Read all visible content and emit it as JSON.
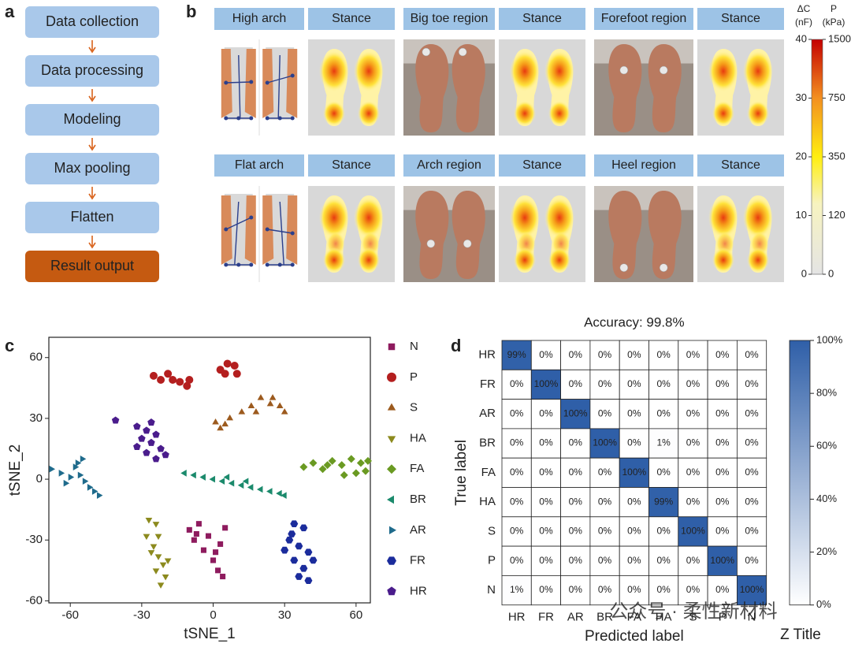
{
  "panel_a": {
    "label": "a",
    "steps": [
      "Data collection",
      "Data processing",
      "Modeling",
      "Max pooling",
      "Flatten",
      "Result output"
    ]
  },
  "panel_b": {
    "label": "b",
    "headers": [
      [
        "High arch",
        "Stance"
      ],
      [
        "Big toe region",
        "Stance"
      ],
      [
        "Forefoot region",
        "Stance"
      ],
      [
        "Flat arch",
        "Stance"
      ],
      [
        "Arch region",
        "Stance"
      ],
      [
        "Heel region",
        "Stance"
      ]
    ],
    "colorbar": {
      "left_title": [
        "ΔC",
        "(nF)"
      ],
      "right_title": [
        "P",
        "(kPa)"
      ],
      "lim": [
        0,
        40
      ],
      "ticks": [
        0,
        10,
        20,
        30,
        40
      ],
      "right_ticks": [
        0,
        120,
        350,
        750,
        1500
      ]
    }
  },
  "chart_data": [
    {
      "type": "scatter",
      "label": "c",
      "xlabel": "tSNE_1",
      "ylabel": "tSNE_2",
      "xlim": [
        -69,
        66
      ],
      "ylim": [
        -61,
        70
      ],
      "xticks": [
        -60,
        -30,
        0,
        30,
        60
      ],
      "yticks": [
        -60,
        -30,
        0,
        30,
        60
      ],
      "series": [
        {
          "name": "N",
          "color": "#8e1b5e",
          "marker": "square",
          "x": [
            -10,
            -8,
            -6,
            -4,
            -2,
            0,
            2,
            3,
            5,
            -7,
            1,
            4
          ],
          "y": [
            -25,
            -30,
            -22,
            -35,
            -28,
            -40,
            -45,
            -32,
            -24,
            -27,
            -36,
            -48
          ]
        },
        {
          "name": "P",
          "color": "#b41f1f",
          "marker": "circle",
          "x": [
            -25,
            -22,
            -19,
            -17,
            -14,
            -11,
            -10,
            3,
            6,
            9,
            10,
            5
          ],
          "y": [
            51,
            49,
            52,
            49,
            48,
            46,
            49,
            54,
            57,
            56,
            52,
            52
          ]
        },
        {
          "name": "S",
          "color": "#9c5a1e",
          "marker": "up",
          "x": [
            1,
            3,
            5,
            7,
            12,
            16,
            20,
            24,
            28,
            30,
            18,
            25
          ],
          "y": [
            28,
            25,
            27,
            30,
            33,
            36,
            40,
            37,
            36,
            33,
            33,
            40
          ]
        },
        {
          "name": "HA",
          "color": "#8c8a1e",
          "marker": "down",
          "x": [
            -27,
            -24,
            -28,
            -25,
            -23,
            -21,
            -24,
            -20,
            -22,
            -26,
            -19,
            -23
          ],
          "y": [
            -20,
            -22,
            -28,
            -33,
            -38,
            -42,
            -45,
            -48,
            -52,
            -36,
            -40,
            -28
          ]
        },
        {
          "name": "FA",
          "color": "#6a9a22",
          "marker": "diamond",
          "x": [
            38,
            42,
            46,
            50,
            54,
            58,
            62,
            65,
            60,
            55,
            64,
            48
          ],
          "y": [
            6,
            8,
            5,
            9,
            7,
            10,
            8,
            9,
            3,
            2,
            4,
            7
          ]
        },
        {
          "name": "BR",
          "color": "#1b8a6c",
          "marker": "left",
          "x": [
            -12,
            -8,
            -4,
            0,
            4,
            8,
            12,
            16,
            20,
            24,
            28,
            30,
            6,
            14
          ],
          "y": [
            3,
            2,
            1,
            0,
            -1,
            -2,
            -3,
            -4,
            -5,
            -6,
            -7,
            -8,
            1,
            -1
          ]
        },
        {
          "name": "AR",
          "color": "#1f6b8c",
          "marker": "right",
          "x": [
            -68,
            -64,
            -60,
            -58,
            -56,
            -54,
            -52,
            -50,
            -48,
            -62,
            -57,
            -55
          ],
          "y": [
            5,
            3,
            1,
            6,
            2,
            -1,
            -4,
            -6,
            -8,
            -2,
            8,
            10
          ]
        },
        {
          "name": "FR",
          "color": "#1b2c9c",
          "marker": "hexagon",
          "x": [
            34,
            38,
            32,
            36,
            40,
            34,
            38,
            36,
            40,
            30,
            42,
            33
          ],
          "y": [
            -22,
            -24,
            -30,
            -33,
            -36,
            -40,
            -44,
            -48,
            -50,
            -35,
            -40,
            -27
          ]
        },
        {
          "name": "HR",
          "color": "#4a1c8c",
          "marker": "pentagon",
          "x": [
            -41,
            -32,
            -28,
            -30,
            -26,
            -24,
            -22,
            -28,
            -24,
            -20,
            -26,
            -32
          ],
          "y": [
            29,
            26,
            24,
            20,
            18,
            22,
            15,
            13,
            10,
            12,
            28,
            16
          ]
        }
      ]
    },
    {
      "type": "heatmap",
      "label": "d",
      "title": "Accuracy: 99.8%",
      "xlabel": "Predicted label",
      "ylabel": "True label",
      "categories": [
        "HR",
        "FR",
        "AR",
        "BR",
        "FA",
        "HA",
        "S",
        "P",
        "N"
      ],
      "values": [
        [
          99,
          0,
          0,
          0,
          0,
          0,
          0,
          0,
          0
        ],
        [
          0,
          100,
          0,
          0,
          0,
          0,
          0,
          0,
          0
        ],
        [
          0,
          0,
          100,
          0,
          0,
          0,
          0,
          0,
          0
        ],
        [
          0,
          0,
          0,
          100,
          0,
          1,
          0,
          0,
          0
        ],
        [
          0,
          0,
          0,
          0,
          100,
          0,
          0,
          0,
          0
        ],
        [
          0,
          0,
          0,
          0,
          0,
          99,
          0,
          0,
          0
        ],
        [
          0,
          0,
          0,
          0,
          0,
          0,
          100,
          0,
          0
        ],
        [
          0,
          0,
          0,
          0,
          0,
          0,
          0,
          100,
          0
        ],
        [
          1,
          0,
          0,
          0,
          0,
          0,
          0,
          0,
          100
        ]
      ],
      "value_labels": [
        [
          "99%",
          "0%",
          "0%",
          "0%",
          "0%",
          "0%",
          "0%",
          "0%",
          "0%"
        ],
        [
          "0%",
          "100%",
          "0%",
          "0%",
          "0%",
          "0%",
          "0%",
          "0%",
          "0%"
        ],
        [
          "0%",
          "0%",
          "100%",
          "0%",
          "0%",
          "0%",
          "0%",
          "0%",
          "0%"
        ],
        [
          "0%",
          "0%",
          "0%",
          "100%",
          "0%",
          "1%",
          "0%",
          "0%",
          "0%"
        ],
        [
          "0%",
          "0%",
          "0%",
          "0%",
          "100%",
          "0%",
          "0%",
          "0%",
          "0%"
        ],
        [
          "0%",
          "0%",
          "0%",
          "0%",
          "0%",
          "99%",
          "0%",
          "0%",
          "0%"
        ],
        [
          "0%",
          "0%",
          "0%",
          "0%",
          "0%",
          "0%",
          "100%",
          "0%",
          "0%"
        ],
        [
          "0%",
          "0%",
          "0%",
          "0%",
          "0%",
          "0%",
          "0%",
          "100%",
          "0%"
        ],
        [
          "1%",
          "0%",
          "0%",
          "0%",
          "0%",
          "0%",
          "0%",
          "0%",
          "100%"
        ]
      ],
      "color": "#2f5fa8",
      "zlim": [
        0,
        100
      ],
      "zticks": [
        {
          "value": 0,
          "label": "0%"
        },
        {
          "value": 20,
          "label": "20%"
        },
        {
          "value": 40,
          "label": "40%"
        },
        {
          "value": 60,
          "label": "60%"
        },
        {
          "value": 80,
          "label": "80%"
        },
        {
          "value": 100,
          "label": "100%"
        }
      ],
      "ztitle": "Z Title"
    }
  ],
  "watermark": "公众号 · 柔性新材料"
}
